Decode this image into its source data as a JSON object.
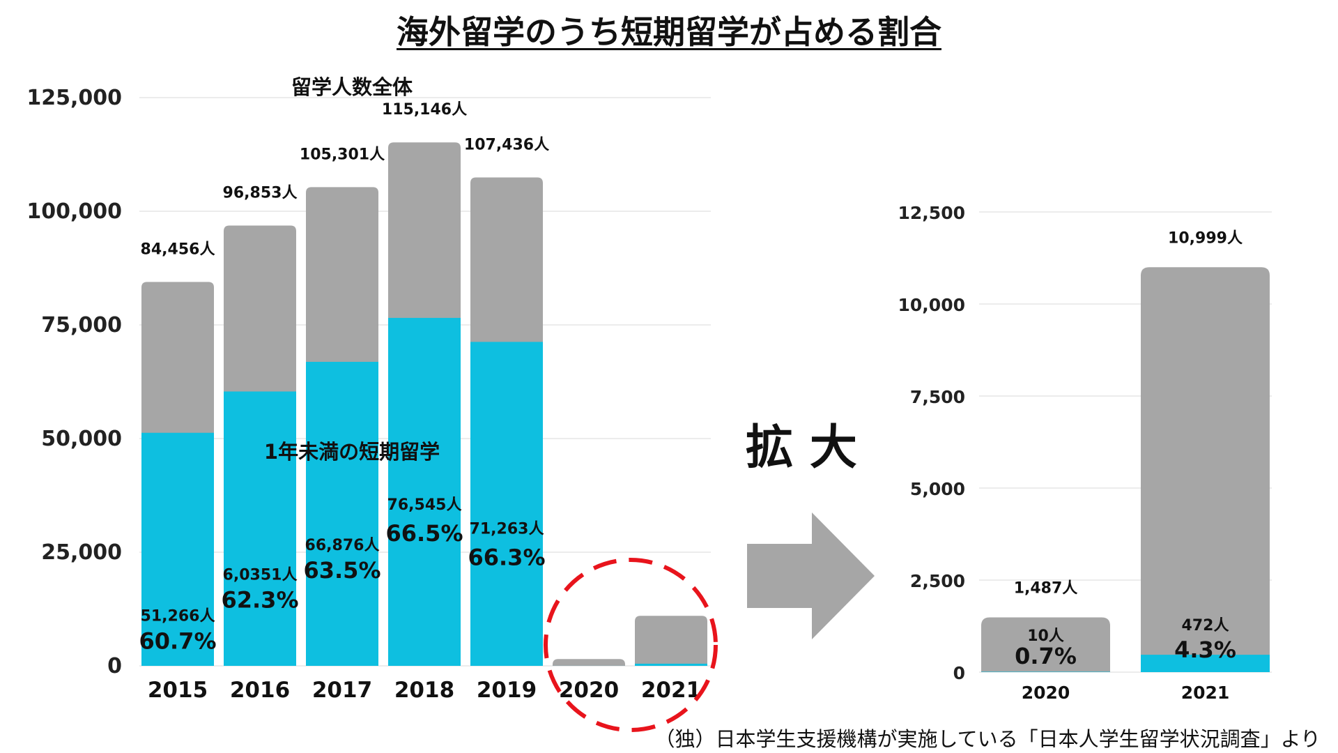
{
  "title": "海外留学のうち短期留学が占める割合",
  "zoom_label": "拡 大",
  "source_note": "（独）日本学生支援機構が実施している「日本人学生留学状況調査」より",
  "colors": {
    "total": "#a6a6a6",
    "short": "#0ebfe0",
    "highlight": "#e8141c",
    "arrow": "#a6a6a6",
    "grid": "#e6e6e6"
  },
  "chart_data": [
    {
      "type": "bar",
      "title": "",
      "xlabel": "",
      "ylabel": "",
      "ylim": [
        0,
        125000
      ],
      "yticks": [
        0,
        25000,
        50000,
        75000,
        100000,
        125000
      ],
      "ytick_labels": [
        "0",
        "25,000",
        "50,000",
        "75,000",
        "100,000",
        "125,000"
      ],
      "categories": [
        "2015",
        "2016",
        "2017",
        "2018",
        "2019",
        "2020",
        "2021"
      ],
      "series": [
        {
          "name": "留学人数全体",
          "values": [
            84456,
            96853,
            105301,
            115146,
            107436,
            1487,
            10999
          ]
        },
        {
          "name": "1年未満の短期留学",
          "values": [
            51266,
            60351,
            66876,
            76545,
            71263,
            10,
            472
          ]
        }
      ],
      "total_labels": [
        "84,456人",
        "96,853人",
        "105,301人",
        "115,146人",
        "107,436人",
        "",
        ""
      ],
      "short_labels": [
        "51,266人",
        "6,0351人",
        "66,876人",
        "76,545人",
        "71,263人",
        "",
        ""
      ],
      "percent_labels": [
        "60.7%",
        "62.3%",
        "63.5%",
        "66.5%",
        "66.3%",
        "",
        ""
      ],
      "grid": true,
      "highlight": [
        "2020",
        "2021"
      ]
    },
    {
      "type": "bar",
      "title": "",
      "xlabel": "",
      "ylabel": "",
      "ylim": [
        0,
        12500
      ],
      "yticks": [
        0,
        2500,
        5000,
        7500,
        10000,
        12500
      ],
      "ytick_labels": [
        "0",
        "2,500",
        "5,000",
        "7,500",
        "10,000",
        "12,500"
      ],
      "categories": [
        "2020",
        "2021"
      ],
      "series": [
        {
          "name": "留学人数全体",
          "values": [
            1487,
            10999
          ]
        },
        {
          "name": "1年未満の短期留学",
          "values": [
            10,
            472
          ]
        }
      ],
      "total_labels": [
        "1,487人",
        "10,999人"
      ],
      "short_labels": [
        "10人",
        "472人"
      ],
      "percent_labels": [
        "0.7%",
        "4.3%"
      ],
      "grid": true
    }
  ]
}
